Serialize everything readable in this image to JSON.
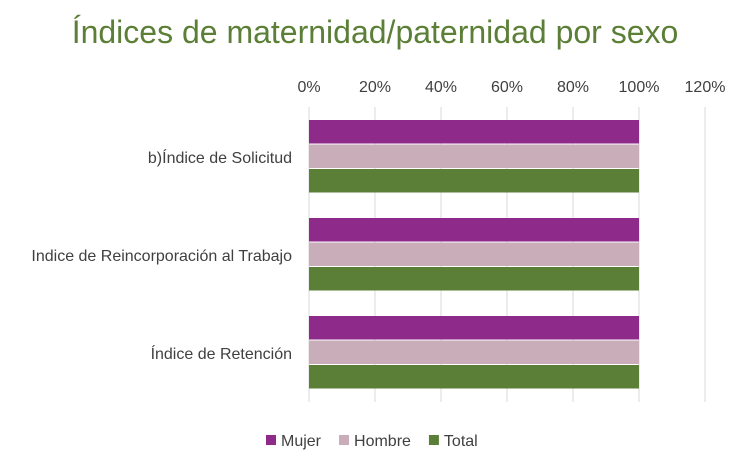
{
  "chart_data": {
    "type": "bar",
    "orientation": "horizontal",
    "title": "Índices de maternidad/paternidad por sexo",
    "categories": [
      "b)Índice de Solicitud",
      "Indice de Reincorporación al Trabajo",
      "Índice de Retención"
    ],
    "series": [
      {
        "name": "Mujer",
        "values": [
          100,
          100,
          100
        ],
        "color": "#8E2A8A"
      },
      {
        "name": "Hombre",
        "values": [
          100,
          100,
          100
        ],
        "color": "#C9ADB8"
      },
      {
        "name": "Total",
        "values": [
          100,
          100,
          100
        ],
        "color": "#5B7F36"
      }
    ],
    "xlim": [
      0,
      120
    ],
    "xticks": [
      "0%",
      "20%",
      "40%",
      "60%",
      "80%",
      "100%",
      "120%"
    ],
    "xaxis_position": "top",
    "grid": true,
    "legend": "bottom"
  }
}
